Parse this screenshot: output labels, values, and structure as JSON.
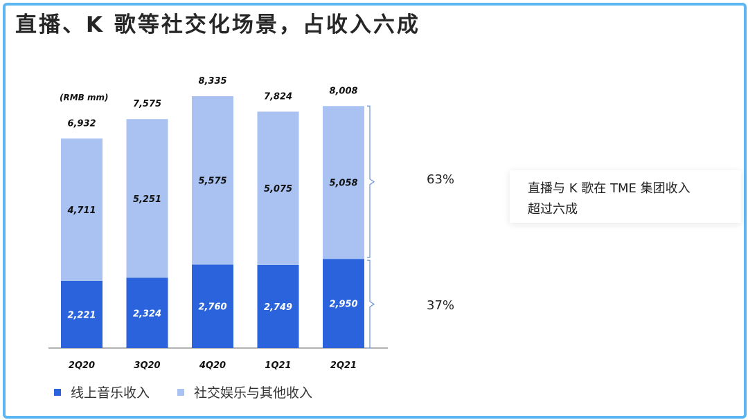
{
  "title": "直播、K 歌等社交化场景，占收入六成",
  "colors": {
    "frame": "#5bb6f2",
    "online_music": "#2a63dc",
    "social_entertainment": "#a9c2f2",
    "bracket": "#6b8fd6"
  },
  "chart_data": {
    "type": "bar",
    "stacked": true,
    "unit_label": "(RMB mm)",
    "categories": [
      "2Q20",
      "3Q20",
      "4Q20",
      "1Q21",
      "2Q21"
    ],
    "series": [
      {
        "name": "线上音乐收入",
        "values": [
          2221,
          2324,
          2760,
          2749,
          2950
        ]
      },
      {
        "name": "社交娱乐与其他收入",
        "values": [
          4711,
          5251,
          5575,
          5075,
          5058
        ]
      }
    ],
    "totals": [
      6932,
      7575,
      8335,
      7824,
      8008
    ],
    "value_labels": {
      "online_music": [
        "2,221",
        "2,324",
        "2,760",
        "2,749",
        "2,950"
      ],
      "social_entertainment": [
        "4,711",
        "5,251",
        "5,575",
        "5,075",
        "5,058"
      ],
      "totals": [
        "6,932",
        "7,575",
        "8,335",
        "7,824",
        "8,008"
      ]
    },
    "ylim": [
      0,
      8335
    ],
    "legend_position": "bottom-left",
    "annotations": {
      "social_share": "63%",
      "music_share": "37%"
    }
  },
  "note": {
    "line1": "直播与 K 歌在 TME 集团收入",
    "line2": "超过六成"
  }
}
